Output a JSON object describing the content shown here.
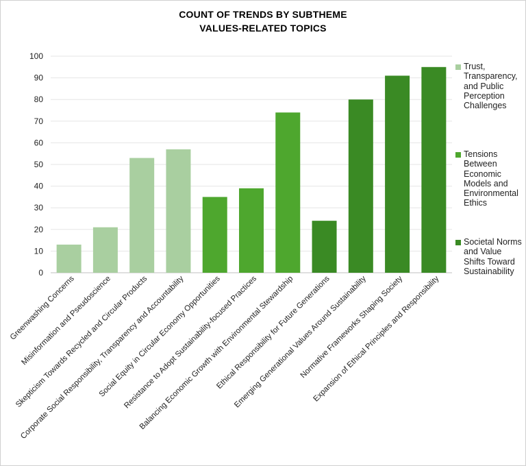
{
  "chart_data": {
    "type": "bar",
    "title": "COUNT OF TRENDS BY SUBTHEME",
    "subtitle": "VALUES-RELATED TOPICS",
    "xlabel": "",
    "ylabel": "",
    "ylim": [
      0,
      100
    ],
    "yticks": [
      0,
      10,
      20,
      30,
      40,
      50,
      60,
      70,
      80,
      90,
      100
    ],
    "grid": true,
    "legend_position": "right",
    "categories": [
      "Greenwashing Concerns",
      "Misinformation and Pseudoscience",
      "Skepticism Towards Recycled and Circular Products",
      "Corporate Social Responsibility, Transparency and Accountability",
      "Social Equity in Circular Economy Opportunities",
      "Resistance to Adopt Sustainability-focused Practices",
      "Balancing Economic Growth with Environmental Stewardship",
      "Ethical Responsibility for Future Generations",
      "Emerging Generational Values Around Sustainability",
      "Normative Frameworks Shaping Society",
      "Expansion of Ethical Principles and Responsibility"
    ],
    "values": [
      13,
      21,
      53,
      57,
      35,
      39,
      74,
      24,
      80,
      91,
      95
    ],
    "bar_groups": [
      0,
      0,
      0,
      0,
      1,
      1,
      1,
      2,
      2,
      2,
      2
    ],
    "series": [
      {
        "name": "Trust, Transparency, and Public Perception Challenges",
        "color": "#a9cfa0"
      },
      {
        "name": "Tensions Between Economic Models and Environmental Ethics",
        "color": "#4ea72e"
      },
      {
        "name": "Societal Norms and Value Shifts Toward Sustainability",
        "color": "#3a8a24"
      }
    ]
  }
}
